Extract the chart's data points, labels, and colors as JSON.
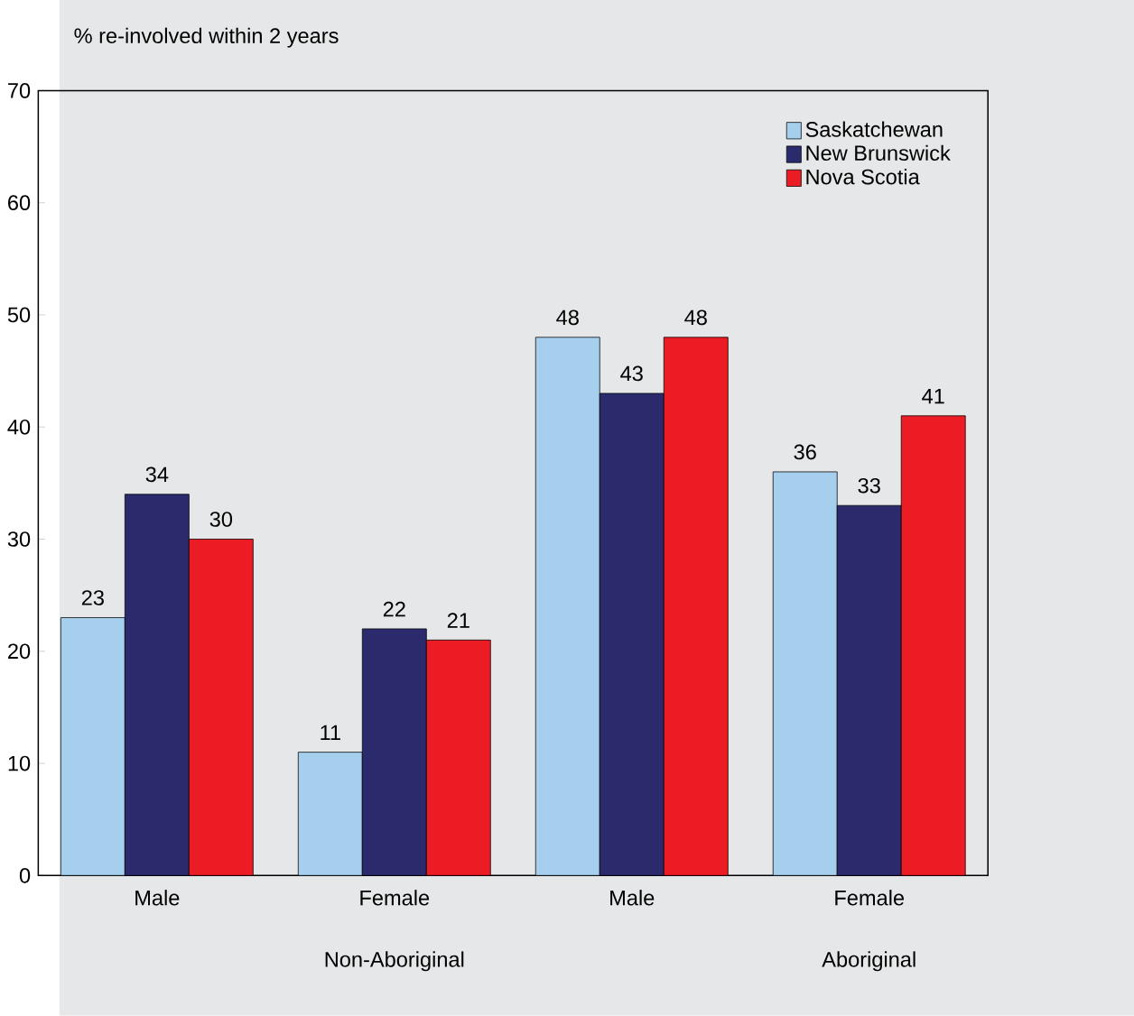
{
  "chart_data": {
    "type": "bar",
    "ylabel": "% re-involved within 2 years",
    "categories": [
      "Male",
      "Female",
      "Male",
      "Female"
    ],
    "series": [
      {
        "name": "Saskatchewan",
        "color": "#a6cfee",
        "values": [
          23,
          11,
          48,
          36
        ]
      },
      {
        "name": "New Brunswick",
        "color": "#2b2a6d",
        "values": [
          34,
          22,
          43,
          33
        ]
      },
      {
        "name": "Nova Scotia",
        "color": "#ec1c24",
        "values": [
          30,
          21,
          48,
          41
        ]
      }
    ],
    "ylim": [
      0,
      70
    ],
    "yticks": [
      0,
      10,
      20,
      30,
      40,
      50,
      60,
      70
    ],
    "data_labels": true,
    "legend": "top right",
    "grid": false,
    "annotations": [
      "Non-Aboriginal",
      "Aboriginal"
    ]
  }
}
